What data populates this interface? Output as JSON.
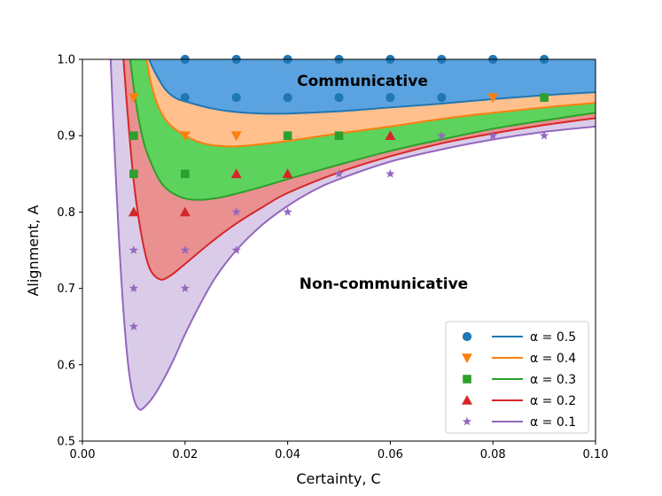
{
  "chart_data": {
    "type": "area",
    "xlabel": "Certainty, C",
    "ylabel": "Alignment, A",
    "xlim": [
      0.0,
      0.1
    ],
    "ylim": [
      0.5,
      1.0
    ],
    "xticks": [
      "0.00",
      "0.02",
      "0.04",
      "0.06",
      "0.08",
      "0.10"
    ],
    "yticks": [
      "0.5",
      "0.6",
      "0.7",
      "0.8",
      "0.9",
      "1.0"
    ],
    "annotations": [
      {
        "text": "Communicative",
        "x": 0.055,
        "y": 0.972
      },
      {
        "text": "Non-communicative",
        "x": 0.06,
        "y": 0.706
      }
    ],
    "legend_position": "lower-right",
    "series": [
      {
        "name": "α = 0.5",
        "alpha": 0.5,
        "color": "#1f77b4",
        "fill": "#5ba3e0",
        "marker": "circle",
        "curve": [
          [
            0.013,
            1.0
          ],
          [
            0.014,
            0.985
          ],
          [
            0.016,
            0.962
          ],
          [
            0.018,
            0.95
          ],
          [
            0.02,
            0.945
          ],
          [
            0.025,
            0.936
          ],
          [
            0.03,
            0.931
          ],
          [
            0.035,
            0.929
          ],
          [
            0.04,
            0.929
          ],
          [
            0.05,
            0.932
          ],
          [
            0.06,
            0.937
          ],
          [
            0.07,
            0.942
          ],
          [
            0.08,
            0.948
          ],
          [
            0.09,
            0.953
          ],
          [
            0.1,
            0.957
          ]
        ],
        "points": [
          [
            0.02,
            1.0
          ],
          [
            0.03,
            1.0
          ],
          [
            0.04,
            1.0
          ],
          [
            0.05,
            1.0
          ],
          [
            0.06,
            1.0
          ],
          [
            0.07,
            1.0
          ],
          [
            0.08,
            1.0
          ],
          [
            0.09,
            1.0
          ],
          [
            0.02,
            0.95
          ],
          [
            0.03,
            0.95
          ],
          [
            0.04,
            0.95
          ],
          [
            0.05,
            0.95
          ],
          [
            0.06,
            0.95
          ],
          [
            0.07,
            0.95
          ]
        ]
      },
      {
        "name": "α = 0.4",
        "alpha": 0.4,
        "color": "#ff7f0e",
        "fill": "#ffc08e",
        "marker": "triangle-down",
        "curve": [
          [
            0.0125,
            1.0
          ],
          [
            0.0135,
            0.965
          ],
          [
            0.015,
            0.935
          ],
          [
            0.017,
            0.915
          ],
          [
            0.02,
            0.9
          ],
          [
            0.023,
            0.891
          ],
          [
            0.026,
            0.887
          ],
          [
            0.03,
            0.886
          ],
          [
            0.035,
            0.889
          ],
          [
            0.04,
            0.893
          ],
          [
            0.05,
            0.903
          ],
          [
            0.06,
            0.912
          ],
          [
            0.07,
            0.922
          ],
          [
            0.08,
            0.93
          ],
          [
            0.09,
            0.937
          ],
          [
            0.1,
            0.943
          ]
        ],
        "points": [
          [
            0.01,
            0.95
          ],
          [
            0.08,
            0.95
          ],
          [
            0.02,
            0.9
          ],
          [
            0.03,
            0.9
          ]
        ]
      },
      {
        "name": "α = 0.3",
        "alpha": 0.3,
        "color": "#2ca02c",
        "fill": "#5dd25d",
        "marker": "square",
        "curve": [
          [
            0.0093,
            1.0
          ],
          [
            0.0105,
            0.94
          ],
          [
            0.012,
            0.89
          ],
          [
            0.014,
            0.855
          ],
          [
            0.016,
            0.833
          ],
          [
            0.019,
            0.82
          ],
          [
            0.022,
            0.816
          ],
          [
            0.026,
            0.818
          ],
          [
            0.03,
            0.824
          ],
          [
            0.035,
            0.833
          ],
          [
            0.04,
            0.843
          ],
          [
            0.05,
            0.862
          ],
          [
            0.06,
            0.88
          ],
          [
            0.07,
            0.895
          ],
          [
            0.08,
            0.909
          ],
          [
            0.09,
            0.92
          ],
          [
            0.1,
            0.93
          ]
        ],
        "points": [
          [
            0.09,
            0.95
          ],
          [
            0.01,
            0.9
          ],
          [
            0.04,
            0.9
          ],
          [
            0.05,
            0.9
          ],
          [
            0.01,
            0.85
          ],
          [
            0.02,
            0.85
          ]
        ]
      },
      {
        "name": "α = 0.2",
        "alpha": 0.2,
        "color": "#d62728",
        "fill": "#ea9090",
        "marker": "triangle-up",
        "curve": [
          [
            0.008,
            1.0
          ],
          [
            0.0088,
            0.93
          ],
          [
            0.01,
            0.84
          ],
          [
            0.0115,
            0.77
          ],
          [
            0.013,
            0.728
          ],
          [
            0.015,
            0.712
          ],
          [
            0.017,
            0.716
          ],
          [
            0.02,
            0.732
          ],
          [
            0.025,
            0.76
          ],
          [
            0.03,
            0.785
          ],
          [
            0.035,
            0.806
          ],
          [
            0.04,
            0.825
          ],
          [
            0.05,
            0.852
          ],
          [
            0.06,
            0.873
          ],
          [
            0.07,
            0.89
          ],
          [
            0.08,
            0.903
          ],
          [
            0.09,
            0.914
          ],
          [
            0.1,
            0.923
          ]
        ],
        "points": [
          [
            0.06,
            0.9
          ],
          [
            0.03,
            0.85
          ],
          [
            0.04,
            0.85
          ],
          [
            0.01,
            0.8
          ],
          [
            0.02,
            0.8
          ]
        ]
      },
      {
        "name": "α = 0.1",
        "alpha": 0.1,
        "color": "#9467bd",
        "fill": "#dacce9",
        "marker": "star",
        "curve": [
          [
            0.0055,
            1.0
          ],
          [
            0.006,
            0.92
          ],
          [
            0.007,
            0.78
          ],
          [
            0.008,
            0.67
          ],
          [
            0.009,
            0.595
          ],
          [
            0.01,
            0.556
          ],
          [
            0.011,
            0.542
          ],
          [
            0.012,
            0.544
          ],
          [
            0.014,
            0.56
          ],
          [
            0.016,
            0.583
          ],
          [
            0.018,
            0.61
          ],
          [
            0.02,
            0.64
          ],
          [
            0.023,
            0.68
          ],
          [
            0.026,
            0.715
          ],
          [
            0.03,
            0.75
          ],
          [
            0.035,
            0.783
          ],
          [
            0.04,
            0.808
          ],
          [
            0.045,
            0.828
          ],
          [
            0.05,
            0.843
          ],
          [
            0.06,
            0.866
          ],
          [
            0.07,
            0.882
          ],
          [
            0.08,
            0.895
          ],
          [
            0.09,
            0.905
          ],
          [
            0.1,
            0.912
          ]
        ],
        "points": [
          [
            0.07,
            0.9
          ],
          [
            0.08,
            0.9
          ],
          [
            0.09,
            0.9
          ],
          [
            0.05,
            0.85
          ],
          [
            0.06,
            0.85
          ],
          [
            0.03,
            0.8
          ],
          [
            0.04,
            0.8
          ],
          [
            0.01,
            0.75
          ],
          [
            0.02,
            0.75
          ],
          [
            0.03,
            0.75
          ],
          [
            0.01,
            0.7
          ],
          [
            0.02,
            0.7
          ],
          [
            0.01,
            0.65
          ]
        ]
      }
    ]
  }
}
